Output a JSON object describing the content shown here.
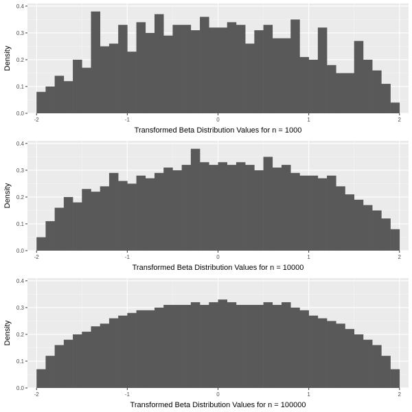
{
  "chart_data": [
    {
      "type": "bar",
      "style": "histogram",
      "xlabel": "Transformed Beta Distribution Values for n = 1000",
      "ylabel": "Density",
      "xlim": [
        -2.1,
        2.1
      ],
      "ylim": [
        0,
        0.41
      ],
      "x_ticks": [
        -2,
        -1,
        0,
        1,
        2
      ],
      "x_tick_labels": [
        "-2",
        "-1",
        "0",
        "1",
        "2"
      ],
      "y_ticks": [
        0,
        0.1,
        0.2,
        0.3,
        0.4
      ],
      "y_tick_labels": [
        "0.0",
        "0.1",
        "0.2",
        "0.3",
        "0.4"
      ],
      "bin_start": -2,
      "bin_width": 0.1,
      "values": [
        0.08,
        0.1,
        0.14,
        0.12,
        0.2,
        0.17,
        0.38,
        0.25,
        0.26,
        0.33,
        0.23,
        0.34,
        0.3,
        0.37,
        0.29,
        0.33,
        0.33,
        0.31,
        0.36,
        0.32,
        0.32,
        0.34,
        0.33,
        0.26,
        0.31,
        0.33,
        0.28,
        0.28,
        0.35,
        0.21,
        0.2,
        0.32,
        0.18,
        0.15,
        0.15,
        0.27,
        0.2,
        0.16,
        0.11,
        0.04
      ],
      "grid": true,
      "colors": {
        "bar": "#595959",
        "panel": "#ebebeb",
        "grid_major": "#ffffff",
        "grid_minor": "#f5f5f5"
      }
    },
    {
      "type": "bar",
      "style": "histogram",
      "xlabel": "Transformed Beta Distribution Values for n = 10000",
      "ylabel": "Density",
      "xlim": [
        -2.1,
        2.1
      ],
      "ylim": [
        0,
        0.41
      ],
      "x_ticks": [
        -2,
        -1,
        0,
        1,
        2
      ],
      "x_tick_labels": [
        "-2",
        "-1",
        "0",
        "1",
        "2"
      ],
      "y_ticks": [
        0,
        0.1,
        0.2,
        0.3,
        0.4
      ],
      "y_tick_labels": [
        "0.0",
        "0.1",
        "0.2",
        "0.3",
        "0.4"
      ],
      "bin_start": -2,
      "bin_width": 0.1,
      "values": [
        0.05,
        0.11,
        0.16,
        0.2,
        0.18,
        0.23,
        0.22,
        0.24,
        0.29,
        0.26,
        0.25,
        0.28,
        0.27,
        0.29,
        0.31,
        0.3,
        0.32,
        0.38,
        0.33,
        0.32,
        0.33,
        0.32,
        0.33,
        0.32,
        0.3,
        0.35,
        0.31,
        0.32,
        0.29,
        0.28,
        0.28,
        0.27,
        0.28,
        0.24,
        0.21,
        0.19,
        0.17,
        0.15,
        0.12,
        0.08
      ],
      "grid": true,
      "colors": {
        "bar": "#595959",
        "panel": "#ebebeb",
        "grid_major": "#ffffff",
        "grid_minor": "#f5f5f5"
      }
    },
    {
      "type": "bar",
      "style": "histogram",
      "xlabel": "Transformed Beta Distribution Values for n = 100000",
      "ylabel": "Density",
      "xlim": [
        -2.1,
        2.1
      ],
      "ylim": [
        0,
        0.41
      ],
      "x_ticks": [
        -2,
        -1,
        0,
        1,
        2
      ],
      "x_tick_labels": [
        "-2",
        "-1",
        "0",
        "1",
        "2"
      ],
      "y_ticks": [
        0,
        0.1,
        0.2,
        0.3,
        0.4
      ],
      "y_tick_labels": [
        "0.0",
        "0.1",
        "0.2",
        "0.3",
        "0.4"
      ],
      "bin_start": -2,
      "bin_width": 0.1,
      "values": [
        0.07,
        0.12,
        0.16,
        0.18,
        0.2,
        0.21,
        0.23,
        0.24,
        0.26,
        0.27,
        0.28,
        0.29,
        0.29,
        0.3,
        0.31,
        0.31,
        0.31,
        0.32,
        0.31,
        0.32,
        0.33,
        0.32,
        0.31,
        0.31,
        0.31,
        0.32,
        0.31,
        0.32,
        0.3,
        0.29,
        0.27,
        0.26,
        0.25,
        0.24,
        0.22,
        0.2,
        0.18,
        0.16,
        0.12,
        0.07
      ],
      "grid": true,
      "colors": {
        "bar": "#595959",
        "panel": "#ebebeb",
        "grid_major": "#ffffff",
        "grid_minor": "#f5f5f5"
      }
    }
  ]
}
